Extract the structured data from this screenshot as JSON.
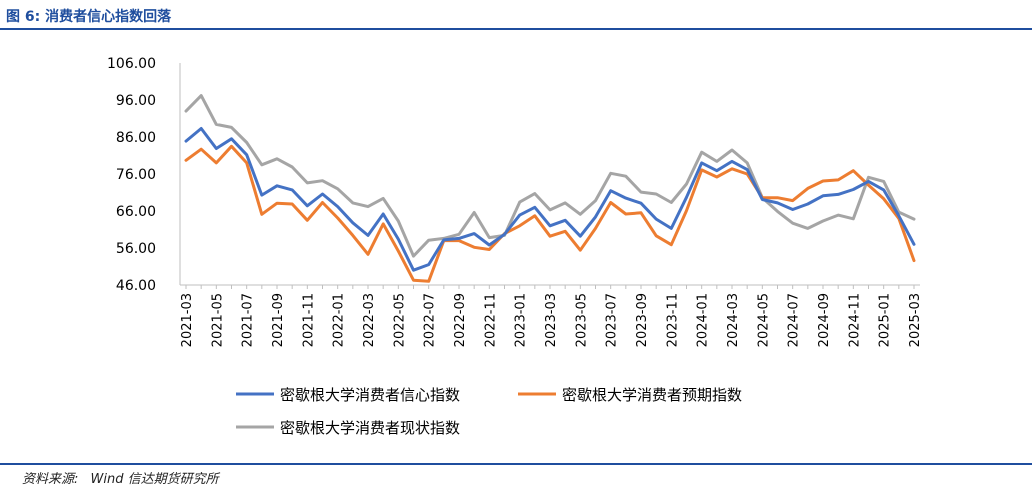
{
  "header": {
    "title": "图 6:  消费者信心指数回落"
  },
  "footer": {
    "source_label": "资料来源:",
    "source_value": "Wind  信达期货研究所"
  },
  "chart_data": {
    "type": "line",
    "title": "消费者信心指数回落",
    "xlabel": "",
    "ylabel": "",
    "ylim": [
      46,
      106
    ],
    "yticks": [
      "106.00",
      "96.00",
      "86.00",
      "76.00",
      "66.00",
      "56.00",
      "46.00"
    ],
    "ytick_values": [
      106,
      96,
      86,
      76,
      66,
      56,
      46
    ],
    "x": [
      "2021-03",
      "2021-04",
      "2021-05",
      "2021-06",
      "2021-07",
      "2021-08",
      "2021-09",
      "2021-10",
      "2021-11",
      "2021-12",
      "2022-01",
      "2022-02",
      "2022-03",
      "2022-04",
      "2022-05",
      "2022-06",
      "2022-07",
      "2022-08",
      "2022-09",
      "2022-10",
      "2022-11",
      "2022-12",
      "2023-01",
      "2023-02",
      "2023-03",
      "2023-04",
      "2023-05",
      "2023-06",
      "2023-07",
      "2023-08",
      "2023-09",
      "2023-10",
      "2023-11",
      "2023-12",
      "2024-01",
      "2024-02",
      "2024-03",
      "2024-04",
      "2024-05",
      "2024-06",
      "2024-07",
      "2024-08",
      "2024-09",
      "2024-10",
      "2024-11",
      "2024-12",
      "2025-01",
      "2025-02",
      "2025-03"
    ],
    "xtick_labels": [
      "2021-03",
      "2021-05",
      "2021-07",
      "2021-09",
      "2021-11",
      "2022-01",
      "2022-03",
      "2022-05",
      "2022-07",
      "2022-09",
      "2022-11",
      "2023-01",
      "2023-03",
      "2023-05",
      "2023-07",
      "2023-09",
      "2023-11",
      "2024-01",
      "2024-03",
      "2024-05",
      "2024-07",
      "2024-09",
      "2024-11",
      "2025-01",
      "2025-03"
    ],
    "legend_position": "bottom",
    "series": [
      {
        "name": "密歇根大学消费者信心指数",
        "color": "#4472c4",
        "values": [
          84.9,
          88.3,
          82.9,
          85.5,
          81.2,
          70.3,
          72.8,
          71.7,
          67.4,
          70.6,
          67.2,
          62.8,
          59.4,
          65.2,
          58.4,
          50.0,
          51.5,
          58.2,
          58.6,
          59.9,
          56.8,
          59.7,
          64.9,
          67.0,
          62.0,
          63.5,
          59.2,
          64.4,
          71.5,
          69.5,
          68.1,
          63.8,
          61.3,
          69.7,
          79.0,
          76.9,
          79.4,
          77.2,
          69.1,
          68.2,
          66.4,
          67.9,
          70.1,
          70.5,
          71.8,
          74.0,
          71.7,
          64.7,
          57.0
        ]
      },
      {
        "name": "密歇根大学消费者预期指数",
        "color": "#ed7d31",
        "values": [
          79.7,
          82.7,
          79.0,
          83.5,
          79.0,
          65.1,
          68.1,
          67.9,
          63.5,
          68.3,
          64.1,
          59.4,
          54.3,
          62.5,
          55.2,
          47.3,
          47.0,
          58.0,
          58.0,
          56.2,
          55.6,
          59.9,
          62.0,
          64.7,
          59.2,
          60.5,
          55.4,
          61.3,
          68.3,
          65.2,
          65.5,
          59.3,
          56.9,
          66.1,
          77.1,
          75.2,
          77.4,
          76.0,
          69.6,
          69.6,
          68.8,
          72.1,
          74.1,
          74.4,
          76.9,
          73.0,
          69.3,
          64.0,
          52.6
        ]
      },
      {
        "name": "密歇根大学消费者现状指数",
        "color": "#a5a5a5",
        "values": [
          93.0,
          97.2,
          89.4,
          88.6,
          84.5,
          78.5,
          80.1,
          77.9,
          73.6,
          74.2,
          72.0,
          68.2,
          67.2,
          69.4,
          63.3,
          53.8,
          58.1,
          58.6,
          59.7,
          65.6,
          58.8,
          59.4,
          68.4,
          70.7,
          66.3,
          68.2,
          65.1,
          68.8,
          76.2,
          75.4,
          71.1,
          70.6,
          68.3,
          73.3,
          81.9,
          79.4,
          82.5,
          79.0,
          69.6,
          65.9,
          62.7,
          61.3,
          63.3,
          64.9,
          63.9,
          75.1,
          74.0,
          65.7,
          63.8
        ]
      }
    ]
  }
}
